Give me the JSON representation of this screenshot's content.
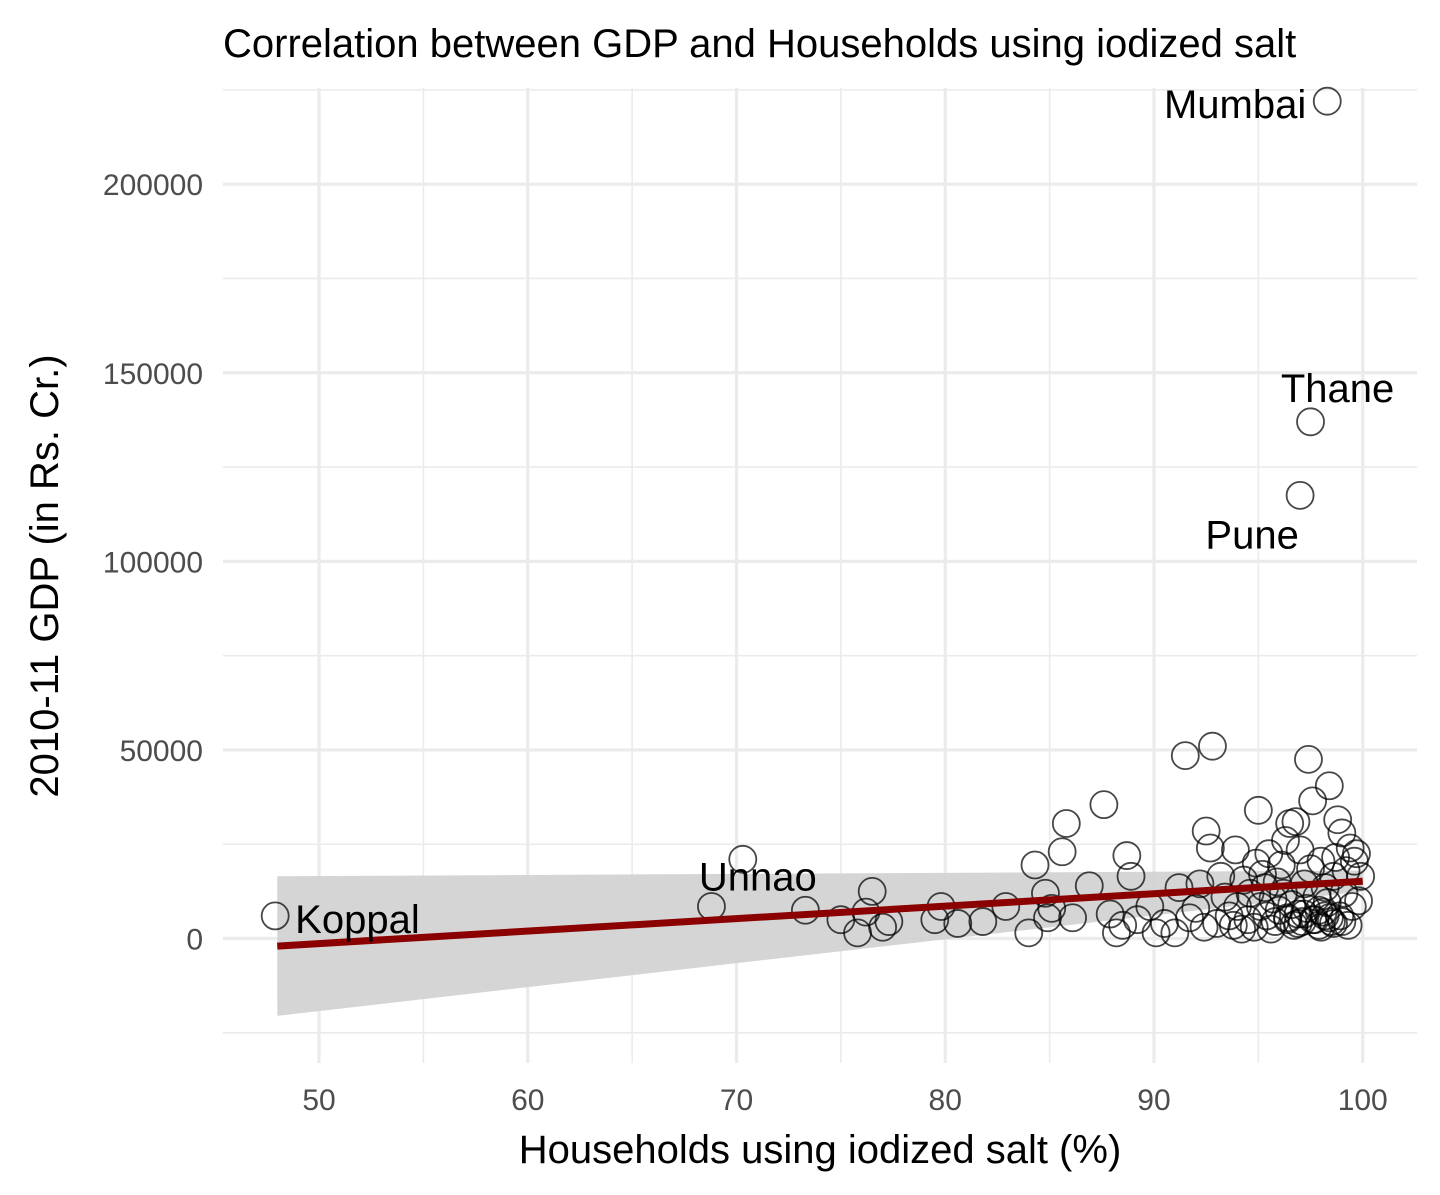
{
  "chart_data": {
    "type": "scatter",
    "title": "Correlation between GDP and Households using iodized salt",
    "xlabel": "Households using iodized salt (%)",
    "ylabel": "2010-11 GDP (in Rs. Cr.)",
    "xlim": [
      45.4,
      102.6
    ],
    "ylim": [
      -33000,
      225500
    ],
    "x_ticks": [
      50,
      60,
      70,
      80,
      90,
      100
    ],
    "x_tick_labels": [
      "50",
      "60",
      "70",
      "80",
      "90",
      "100"
    ],
    "y_ticks": [
      0,
      50000,
      100000,
      150000,
      200000
    ],
    "y_tick_labels": [
      "0",
      "50000",
      "100000",
      "150000",
      "200000"
    ],
    "grid": true,
    "legend": "none",
    "colors": {
      "points": "#000000",
      "trend_line": "#8b0000",
      "confidence_band": "#d3d3d3",
      "grid": "#ebebeb",
      "tick_text": "#4d4d4d"
    },
    "trend": {
      "method": "linear",
      "x_range": [
        48,
        100
      ],
      "y_at_start": -2000,
      "y_at_end": 15200,
      "band_upper_at_start": 16500,
      "band_lower_at_start": -20500,
      "band_upper_at_end": 18000,
      "band_lower_at_end": 12500
    },
    "labeled_points": [
      {
        "label": "Mumbai",
        "x": 98.3,
        "y": 222000
      },
      {
        "label": "Thane",
        "x": 97.5,
        "y": 137000
      },
      {
        "label": "Pune",
        "x": 97.0,
        "y": 117500
      },
      {
        "label": "Unnao",
        "x": 70.3,
        "y": 21000
      },
      {
        "label": "Koppal",
        "x": 47.9,
        "y": 6000
      }
    ],
    "points": [
      [
        68.8,
        8500
      ],
      [
        73.3,
        7500
      ],
      [
        75.0,
        5000
      ],
      [
        75.8,
        1500
      ],
      [
        76.2,
        7000
      ],
      [
        76.5,
        12500
      ],
      [
        77.0,
        3000
      ],
      [
        77.3,
        4500
      ],
      [
        79.5,
        5000
      ],
      [
        79.8,
        8500
      ],
      [
        80.6,
        4000
      ],
      [
        81.8,
        4500
      ],
      [
        82.9,
        8500
      ],
      [
        84.0,
        1500
      ],
      [
        84.3,
        19500
      ],
      [
        84.8,
        12000
      ],
      [
        84.9,
        5500
      ],
      [
        85.1,
        8000
      ],
      [
        85.6,
        23000
      ],
      [
        85.8,
        30500
      ],
      [
        86.1,
        5500
      ],
      [
        86.9,
        14000
      ],
      [
        87.6,
        35500
      ],
      [
        87.9,
        6500
      ],
      [
        88.2,
        1500
      ],
      [
        88.5,
        3500
      ],
      [
        88.7,
        22000
      ],
      [
        88.9,
        16500
      ],
      [
        89.2,
        5000
      ],
      [
        89.8,
        8500
      ],
      [
        90.1,
        1500
      ],
      [
        90.5,
        4000
      ],
      [
        91.0,
        1500
      ],
      [
        91.2,
        13500
      ],
      [
        91.5,
        48500
      ],
      [
        91.7,
        5500
      ],
      [
        92.0,
        8000
      ],
      [
        92.2,
        14500
      ],
      [
        92.4,
        3000
      ],
      [
        92.5,
        28500
      ],
      [
        92.7,
        24000
      ],
      [
        92.8,
        51000
      ],
      [
        93.0,
        4000
      ],
      [
        93.2,
        16500
      ],
      [
        93.4,
        11000
      ],
      [
        93.6,
        6000
      ],
      [
        93.8,
        3500
      ],
      [
        93.9,
        23500
      ],
      [
        94.0,
        8500
      ],
      [
        94.2,
        2500
      ],
      [
        94.3,
        15500
      ],
      [
        94.5,
        5000
      ],
      [
        94.6,
        12000
      ],
      [
        94.8,
        3000
      ],
      [
        94.9,
        20000
      ],
      [
        95.0,
        34000
      ],
      [
        95.1,
        8500
      ],
      [
        95.2,
        17000
      ],
      [
        95.3,
        13500
      ],
      [
        95.4,
        6000
      ],
      [
        95.5,
        22500
      ],
      [
        95.6,
        2500
      ],
      [
        95.7,
        10500
      ],
      [
        95.8,
        4500
      ],
      [
        95.9,
        15000
      ],
      [
        96.0,
        7500
      ],
      [
        96.1,
        19500
      ],
      [
        96.2,
        12000
      ],
      [
        96.3,
        26000
      ],
      [
        96.4,
        5500
      ],
      [
        96.5,
        30500
      ],
      [
        96.6,
        9000
      ],
      [
        96.7,
        3500
      ],
      [
        96.8,
        31000
      ],
      [
        96.9,
        6500
      ],
      [
        97.0,
        23500
      ],
      [
        97.1,
        4500
      ],
      [
        97.2,
        14500
      ],
      [
        97.3,
        8000
      ],
      [
        97.4,
        47500
      ],
      [
        97.5,
        18500
      ],
      [
        97.6,
        36500
      ],
      [
        97.7,
        5000
      ],
      [
        97.8,
        11000
      ],
      [
        97.9,
        3500
      ],
      [
        98.0,
        20500
      ],
      [
        98.1,
        7000
      ],
      [
        98.2,
        13500
      ],
      [
        98.3,
        9500
      ],
      [
        98.4,
        40500
      ],
      [
        98.5,
        4500
      ],
      [
        98.6,
        16500
      ],
      [
        98.7,
        21500
      ],
      [
        98.8,
        31500
      ],
      [
        98.9,
        6000
      ],
      [
        99.0,
        28000
      ],
      [
        99.1,
        12000
      ],
      [
        99.2,
        18000
      ],
      [
        99.3,
        3500
      ],
      [
        99.4,
        24000
      ],
      [
        99.5,
        8500
      ],
      [
        99.6,
        20500
      ],
      [
        99.7,
        22500
      ],
      [
        99.8,
        10000
      ],
      [
        99.9,
        16500
      ],
      [
        96.4,
        5000
      ],
      [
        96.9,
        4000
      ],
      [
        97.2,
        6500
      ],
      [
        97.6,
        5000
      ],
      [
        98.0,
        3000
      ],
      [
        98.2,
        6000
      ],
      [
        98.6,
        4000
      ],
      [
        99.0,
        4500
      ],
      [
        97.9,
        7500
      ],
      [
        98.4,
        5500
      ]
    ]
  }
}
